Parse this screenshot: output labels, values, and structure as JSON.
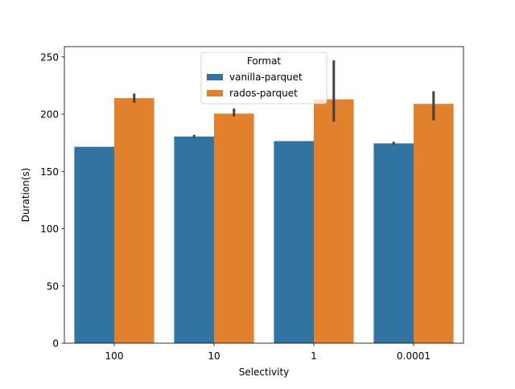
{
  "chart_data": {
    "type": "bar",
    "title": "",
    "xlabel": "Selectivity",
    "ylabel": "Duration(s)",
    "categories": [
      "100",
      "10",
      "1",
      "0.0001"
    ],
    "ylim": [
      0,
      259
    ],
    "yticks": [
      0,
      50,
      100,
      150,
      200,
      250
    ],
    "grid": false,
    "legend": {
      "title": "Format",
      "placement": "upper-center"
    },
    "series": [
      {
        "name": "vanilla-parquet",
        "color": "#3274a1",
        "values": [
          171.5,
          180.5,
          176.5,
          174.5
        ],
        "error_low": [
          171.5,
          179.5,
          176.5,
          173.5
        ],
        "error_high": [
          171.5,
          182.0,
          176.5,
          176.0
        ]
      },
      {
        "name": "rados-parquet",
        "color": "#e1812c",
        "values": [
          214.0,
          200.5,
          213.0,
          209.0
        ],
        "error_low": [
          210.0,
          198.0,
          193.5,
          194.5
        ],
        "error_high": [
          218.0,
          205.0,
          247.0,
          220.0
        ]
      }
    ],
    "error_bar_color": "#424242"
  }
}
